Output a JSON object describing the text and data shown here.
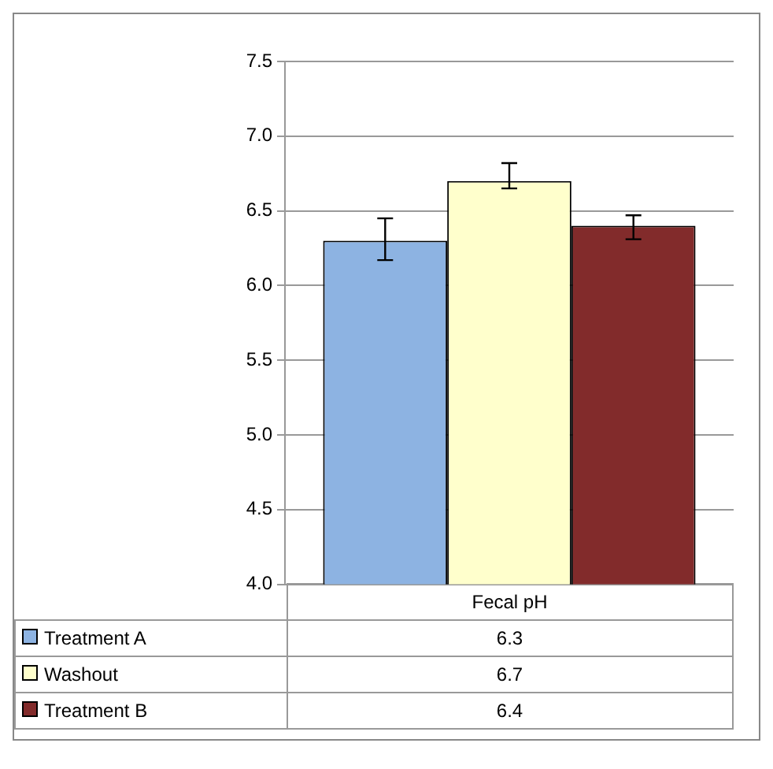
{
  "chart_data": {
    "type": "bar",
    "categories": [
      "Fecal pH"
    ],
    "series": [
      {
        "name": "Treatment A",
        "color": "#8db3e2",
        "values": [
          6.3
        ],
        "errors": [
          [
            6.17,
            6.45
          ]
        ]
      },
      {
        "name": "Washout",
        "color": "#ffffcc",
        "values": [
          6.7
        ],
        "errors": [
          [
            6.65,
            6.82
          ]
        ]
      },
      {
        "name": "Treatment B",
        "color": "#822b2b",
        "values": [
          6.4
        ],
        "errors": [
          [
            6.31,
            6.47
          ]
        ]
      }
    ],
    "ylim": [
      4.0,
      7.5
    ],
    "yticks": [
      {
        "value": 4,
        "label": "4.0"
      },
      {
        "value": 4.5,
        "label": "4.5"
      },
      {
        "value": 5,
        "label": "5.0"
      },
      {
        "value": 5.5,
        "label": "5.5"
      },
      {
        "value": 6,
        "label": "6.0"
      },
      {
        "value": 6.5,
        "label": "6.5"
      },
      {
        "value": 7,
        "label": "7.0"
      },
      {
        "value": 7.5,
        "label": "7.5"
      }
    ],
    "grid": "y",
    "legend": "bottom left",
    "annotations": [
      "6.3",
      "6.7",
      "6.4"
    ]
  }
}
